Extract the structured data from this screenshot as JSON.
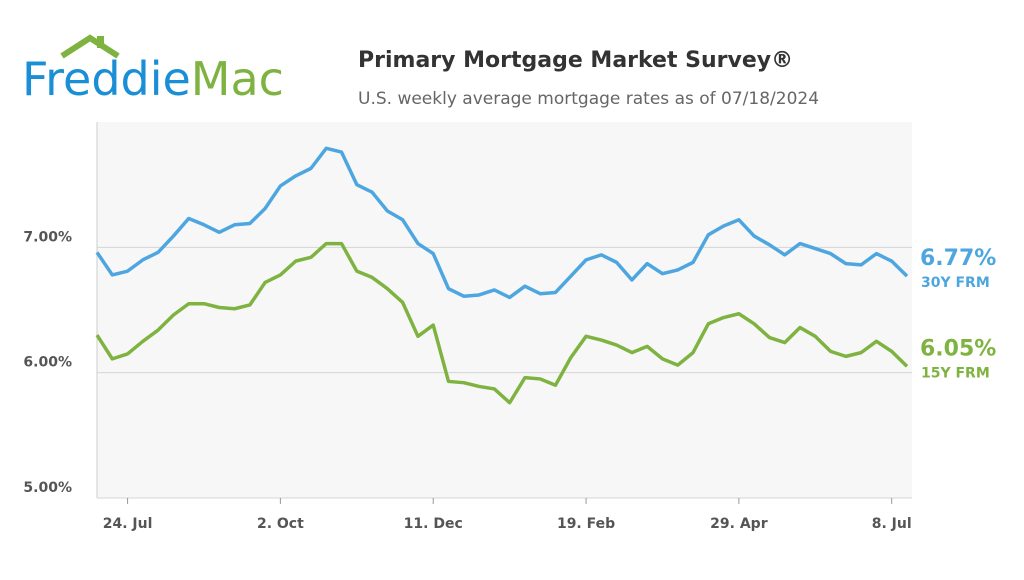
{
  "header": {
    "logo_part1": "Freddie",
    "logo_part2": "Mac",
    "title": "Primary Mortgage Market Survey®",
    "subtitle": "U.S. weekly average mortgage rates as of 07/18/2024"
  },
  "chart_data": {
    "type": "line",
    "categories": [
      null,
      null,
      "24. Jul",
      null,
      null,
      null,
      null,
      null,
      null,
      null,
      null,
      null,
      "2. Oct",
      null,
      null,
      null,
      null,
      null,
      null,
      null,
      null,
      null,
      "11. Dec",
      null,
      null,
      null,
      null,
      null,
      null,
      null,
      null,
      null,
      "19. Feb",
      null,
      null,
      null,
      null,
      null,
      null,
      null,
      null,
      null,
      "29. Apr",
      null,
      null,
      null,
      null,
      null,
      null,
      null,
      null,
      null,
      "8. Jul",
      null
    ],
    "series": [
      {
        "name": "30Y FRM",
        "color": "#4ea6e0",
        "values": [
          6.96,
          6.78,
          6.81,
          6.9,
          6.96,
          7.09,
          7.23,
          7.18,
          7.12,
          7.18,
          7.19,
          7.31,
          7.49,
          7.57,
          7.63,
          7.79,
          7.76,
          7.5,
          7.44,
          7.29,
          7.22,
          7.03,
          6.95,
          6.67,
          6.61,
          6.62,
          6.66,
          6.6,
          6.69,
          6.63,
          6.64,
          6.77,
          6.9,
          6.94,
          6.88,
          6.74,
          6.87,
          6.79,
          6.82,
          6.88,
          7.1,
          7.17,
          7.22,
          7.09,
          7.02,
          6.94,
          7.03,
          6.99,
          6.95,
          6.87,
          6.86,
          6.95,
          6.89,
          6.77
        ],
        "value_labels": [
          null,
          null,
          null,
          null,
          null,
          null,
          null,
          null,
          null,
          null,
          null,
          null,
          null,
          null,
          null,
          null,
          null,
          null,
          null,
          null,
          null,
          null,
          null,
          null,
          null,
          null,
          null,
          null,
          null,
          null,
          null,
          null,
          null,
          null,
          null,
          null,
          null,
          null,
          null,
          null,
          null,
          null,
          null,
          null,
          null,
          null,
          null,
          null,
          null,
          null,
          null,
          null,
          null,
          "6.77%"
        ]
      },
      {
        "name": "15Y FRM",
        "color": "#7fb341",
        "values": [
          6.3,
          6.11,
          6.15,
          6.25,
          6.34,
          6.46,
          6.55,
          6.55,
          6.52,
          6.51,
          6.54,
          6.72,
          6.78,
          6.89,
          6.92,
          7.03,
          7.03,
          6.81,
          6.76,
          6.67,
          6.56,
          6.29,
          6.38,
          5.93,
          5.92,
          5.89,
          5.87,
          5.76,
          5.96,
          5.95,
          5.9,
          6.12,
          6.29,
          6.26,
          6.22,
          6.16,
          6.21,
          6.11,
          6.06,
          6.16,
          6.39,
          6.44,
          6.47,
          6.39,
          6.28,
          6.24,
          6.36,
          6.29,
          6.17,
          6.13,
          6.16,
          6.25,
          6.17,
          6.05
        ],
        "value_labels": [
          null,
          null,
          null,
          null,
          null,
          null,
          null,
          null,
          null,
          null,
          null,
          null,
          null,
          null,
          null,
          null,
          null,
          null,
          null,
          null,
          null,
          null,
          null,
          null,
          null,
          null,
          null,
          null,
          null,
          null,
          null,
          null,
          null,
          null,
          null,
          null,
          null,
          null,
          null,
          null,
          null,
          null,
          null,
          null,
          null,
          null,
          null,
          null,
          null,
          null,
          null,
          null,
          null,
          "6.05%"
        ]
      }
    ],
    "ylim": [
      5,
      8
    ],
    "yticks": [
      {
        "value": 5,
        "label": "5.00%"
      },
      {
        "value": 6,
        "label": "6.00%"
      },
      {
        "value": 7,
        "label": "7.00%"
      }
    ],
    "grid": true
  }
}
